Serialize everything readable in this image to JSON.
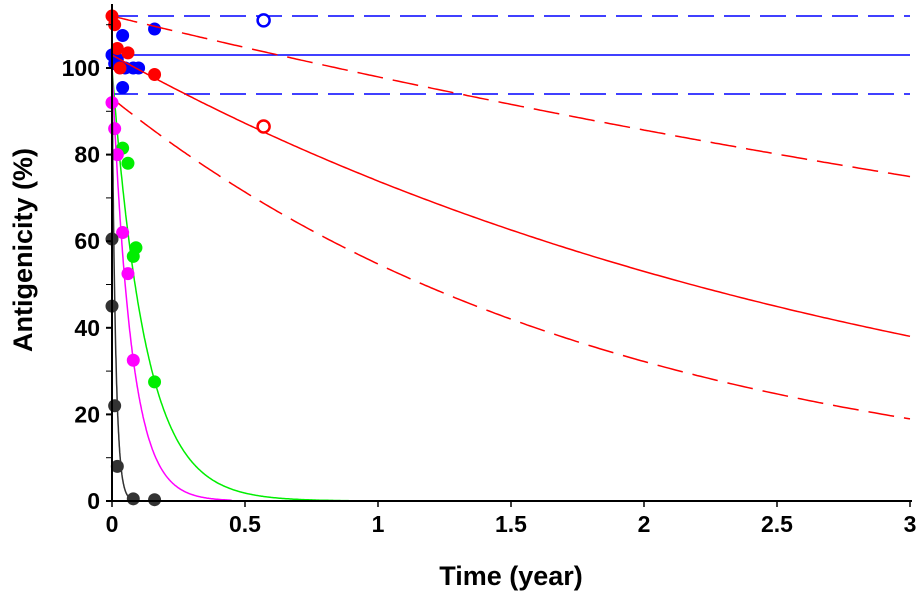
{
  "chart_data": {
    "type": "scatter",
    "title": "",
    "xlabel": "Time (year)",
    "ylabel": "Antigenicity (%)",
    "xlim": [
      0,
      3
    ],
    "ylim": [
      0,
      114
    ],
    "xticks": [
      "0",
      "0.5",
      "1",
      "1.5",
      "2",
      "2.5",
      "3"
    ],
    "yticks": [
      "0",
      "20",
      "40",
      "60",
      "80",
      "100"
    ],
    "grid": false,
    "series": [
      {
        "color": "#0000ff",
        "points": [
          [
            0.0,
            103
          ],
          [
            0.01,
            101
          ],
          [
            0.02,
            102
          ],
          [
            0.04,
            107.5
          ],
          [
            0.05,
            100
          ],
          [
            0.08,
            100
          ],
          [
            0.1,
            100
          ],
          [
            0.04,
            95.5
          ],
          [
            0.16,
            109
          ]
        ],
        "open_points": [
          [
            0.57,
            111
          ]
        ],
        "fit": {
          "model": "constant",
          "value": 103
        },
        "ci": {
          "upper": {
            "model": "constant",
            "value": 112
          },
          "lower": {
            "model": "constant",
            "value": 94
          }
        }
      },
      {
        "color": "#ff0000",
        "points": [
          [
            0.0,
            112
          ],
          [
            0.01,
            110
          ],
          [
            0.02,
            104.5
          ],
          [
            0.03,
            100
          ],
          [
            0.06,
            103.5
          ],
          [
            0.16,
            98.5
          ]
        ],
        "open_points": [
          [
            0.57,
            86.5
          ]
        ],
        "fit": {
          "model": "exponential",
          "a": 103,
          "k": 0.332
        },
        "ci": {
          "upper": {
            "model": "exponential",
            "a": 112,
            "k": 0.134
          },
          "lower": {
            "model": "exponential",
            "a": 93,
            "k": 0.53
          }
        }
      },
      {
        "color": "#00ee00",
        "points": [
          [
            0.04,
            81.5
          ],
          [
            0.06,
            78
          ],
          [
            0.08,
            56.5
          ],
          [
            0.09,
            58.5
          ],
          [
            0.16,
            27.5
          ]
        ],
        "fit": {
          "model": "exponential",
          "a": 100,
          "k": 8,
          "xmax": 0.92
        }
      },
      {
        "color": "#ff00ff",
        "points": [
          [
            0.0,
            92
          ],
          [
            0.01,
            86
          ],
          [
            0.02,
            80
          ],
          [
            0.04,
            62
          ],
          [
            0.06,
            52.5
          ],
          [
            0.08,
            32.5
          ]
        ],
        "fit": {
          "model": "exponential",
          "a": 100,
          "k": 14,
          "xmax": 0.45
        }
      },
      {
        "color": "#333333",
        "points": [
          [
            0.0,
            60.5
          ],
          [
            0.0,
            45
          ],
          [
            0.01,
            22
          ],
          [
            0.02,
            8
          ],
          [
            0.08,
            0.5
          ],
          [
            0.16,
            0.3
          ]
        ],
        "fit": {
          "model": "exponential",
          "a": 100,
          "k": 75,
          "xmax": 0.2
        }
      }
    ]
  }
}
